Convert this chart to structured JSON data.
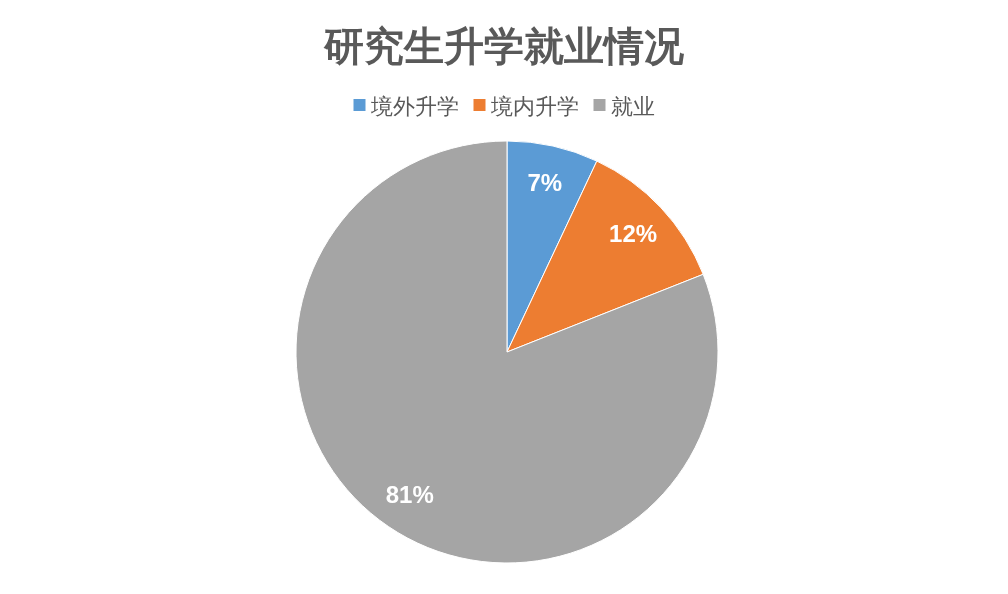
{
  "chart_data": {
    "type": "pie",
    "title": "研究生升学就业情况",
    "categories": [
      "境外升学",
      "境内升学",
      "就业"
    ],
    "values": [
      7,
      12,
      81
    ],
    "colors": [
      "#5b9bd5",
      "#ed7d31",
      "#a5a5a5"
    ],
    "value_labels": [
      "7%",
      "12%",
      "81%"
    ],
    "legend": "top"
  }
}
